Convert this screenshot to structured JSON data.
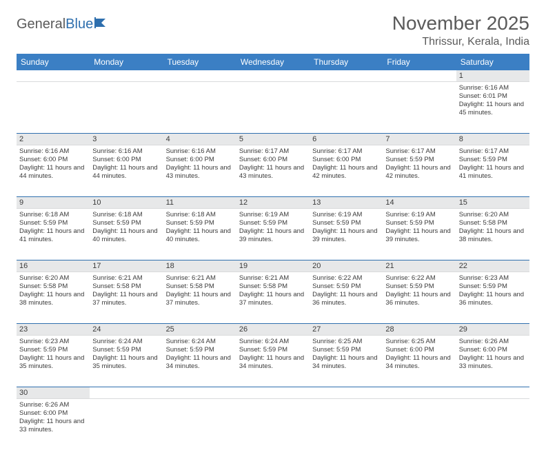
{
  "brand": {
    "part1": "General",
    "part2": "Blue"
  },
  "title": "November 2025",
  "location": "Thrissur, Kerala, India",
  "colors": {
    "header_bg": "#3b7fc4",
    "divider": "#2e6fae",
    "daybar_bg": "#e7e8e9",
    "text": "#3a3a3a",
    "muted": "#5a5a5a"
  },
  "daysOfWeek": [
    "Sunday",
    "Monday",
    "Tuesday",
    "Wednesday",
    "Thursday",
    "Friday",
    "Saturday"
  ],
  "weeks": [
    [
      {
        "n": "",
        "sr": "",
        "ss": "",
        "dl": ""
      },
      {
        "n": "",
        "sr": "",
        "ss": "",
        "dl": ""
      },
      {
        "n": "",
        "sr": "",
        "ss": "",
        "dl": ""
      },
      {
        "n": "",
        "sr": "",
        "ss": "",
        "dl": ""
      },
      {
        "n": "",
        "sr": "",
        "ss": "",
        "dl": ""
      },
      {
        "n": "",
        "sr": "",
        "ss": "",
        "dl": ""
      },
      {
        "n": "1",
        "sr": "Sunrise: 6:16 AM",
        "ss": "Sunset: 6:01 PM",
        "dl": "Daylight: 11 hours and 45 minutes."
      }
    ],
    [
      {
        "n": "2",
        "sr": "Sunrise: 6:16 AM",
        "ss": "Sunset: 6:00 PM",
        "dl": "Daylight: 11 hours and 44 minutes."
      },
      {
        "n": "3",
        "sr": "Sunrise: 6:16 AM",
        "ss": "Sunset: 6:00 PM",
        "dl": "Daylight: 11 hours and 44 minutes."
      },
      {
        "n": "4",
        "sr": "Sunrise: 6:16 AM",
        "ss": "Sunset: 6:00 PM",
        "dl": "Daylight: 11 hours and 43 minutes."
      },
      {
        "n": "5",
        "sr": "Sunrise: 6:17 AM",
        "ss": "Sunset: 6:00 PM",
        "dl": "Daylight: 11 hours and 43 minutes."
      },
      {
        "n": "6",
        "sr": "Sunrise: 6:17 AM",
        "ss": "Sunset: 6:00 PM",
        "dl": "Daylight: 11 hours and 42 minutes."
      },
      {
        "n": "7",
        "sr": "Sunrise: 6:17 AM",
        "ss": "Sunset: 5:59 PM",
        "dl": "Daylight: 11 hours and 42 minutes."
      },
      {
        "n": "8",
        "sr": "Sunrise: 6:17 AM",
        "ss": "Sunset: 5:59 PM",
        "dl": "Daylight: 11 hours and 41 minutes."
      }
    ],
    [
      {
        "n": "9",
        "sr": "Sunrise: 6:18 AM",
        "ss": "Sunset: 5:59 PM",
        "dl": "Daylight: 11 hours and 41 minutes."
      },
      {
        "n": "10",
        "sr": "Sunrise: 6:18 AM",
        "ss": "Sunset: 5:59 PM",
        "dl": "Daylight: 11 hours and 40 minutes."
      },
      {
        "n": "11",
        "sr": "Sunrise: 6:18 AM",
        "ss": "Sunset: 5:59 PM",
        "dl": "Daylight: 11 hours and 40 minutes."
      },
      {
        "n": "12",
        "sr": "Sunrise: 6:19 AM",
        "ss": "Sunset: 5:59 PM",
        "dl": "Daylight: 11 hours and 39 minutes."
      },
      {
        "n": "13",
        "sr": "Sunrise: 6:19 AM",
        "ss": "Sunset: 5:59 PM",
        "dl": "Daylight: 11 hours and 39 minutes."
      },
      {
        "n": "14",
        "sr": "Sunrise: 6:19 AM",
        "ss": "Sunset: 5:59 PM",
        "dl": "Daylight: 11 hours and 39 minutes."
      },
      {
        "n": "15",
        "sr": "Sunrise: 6:20 AM",
        "ss": "Sunset: 5:58 PM",
        "dl": "Daylight: 11 hours and 38 minutes."
      }
    ],
    [
      {
        "n": "16",
        "sr": "Sunrise: 6:20 AM",
        "ss": "Sunset: 5:58 PM",
        "dl": "Daylight: 11 hours and 38 minutes."
      },
      {
        "n": "17",
        "sr": "Sunrise: 6:21 AM",
        "ss": "Sunset: 5:58 PM",
        "dl": "Daylight: 11 hours and 37 minutes."
      },
      {
        "n": "18",
        "sr": "Sunrise: 6:21 AM",
        "ss": "Sunset: 5:58 PM",
        "dl": "Daylight: 11 hours and 37 minutes."
      },
      {
        "n": "19",
        "sr": "Sunrise: 6:21 AM",
        "ss": "Sunset: 5:58 PM",
        "dl": "Daylight: 11 hours and 37 minutes."
      },
      {
        "n": "20",
        "sr": "Sunrise: 6:22 AM",
        "ss": "Sunset: 5:59 PM",
        "dl": "Daylight: 11 hours and 36 minutes."
      },
      {
        "n": "21",
        "sr": "Sunrise: 6:22 AM",
        "ss": "Sunset: 5:59 PM",
        "dl": "Daylight: 11 hours and 36 minutes."
      },
      {
        "n": "22",
        "sr": "Sunrise: 6:23 AM",
        "ss": "Sunset: 5:59 PM",
        "dl": "Daylight: 11 hours and 36 minutes."
      }
    ],
    [
      {
        "n": "23",
        "sr": "Sunrise: 6:23 AM",
        "ss": "Sunset: 5:59 PM",
        "dl": "Daylight: 11 hours and 35 minutes."
      },
      {
        "n": "24",
        "sr": "Sunrise: 6:24 AM",
        "ss": "Sunset: 5:59 PM",
        "dl": "Daylight: 11 hours and 35 minutes."
      },
      {
        "n": "25",
        "sr": "Sunrise: 6:24 AM",
        "ss": "Sunset: 5:59 PM",
        "dl": "Daylight: 11 hours and 34 minutes."
      },
      {
        "n": "26",
        "sr": "Sunrise: 6:24 AM",
        "ss": "Sunset: 5:59 PM",
        "dl": "Daylight: 11 hours and 34 minutes."
      },
      {
        "n": "27",
        "sr": "Sunrise: 6:25 AM",
        "ss": "Sunset: 5:59 PM",
        "dl": "Daylight: 11 hours and 34 minutes."
      },
      {
        "n": "28",
        "sr": "Sunrise: 6:25 AM",
        "ss": "Sunset: 6:00 PM",
        "dl": "Daylight: 11 hours and 34 minutes."
      },
      {
        "n": "29",
        "sr": "Sunrise: 6:26 AM",
        "ss": "Sunset: 6:00 PM",
        "dl": "Daylight: 11 hours and 33 minutes."
      }
    ],
    [
      {
        "n": "30",
        "sr": "Sunrise: 6:26 AM",
        "ss": "Sunset: 6:00 PM",
        "dl": "Daylight: 11 hours and 33 minutes."
      },
      {
        "n": "",
        "sr": "",
        "ss": "",
        "dl": ""
      },
      {
        "n": "",
        "sr": "",
        "ss": "",
        "dl": ""
      },
      {
        "n": "",
        "sr": "",
        "ss": "",
        "dl": ""
      },
      {
        "n": "",
        "sr": "",
        "ss": "",
        "dl": ""
      },
      {
        "n": "",
        "sr": "",
        "ss": "",
        "dl": ""
      },
      {
        "n": "",
        "sr": "",
        "ss": "",
        "dl": ""
      }
    ]
  ]
}
